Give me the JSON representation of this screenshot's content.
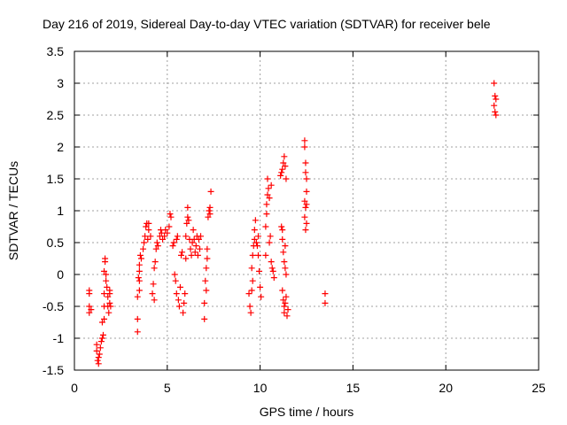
{
  "chart_data": {
    "type": "scatter",
    "title": "Day 216 of 2019, Sidereal Day-to-day VTEC variation (SDTVAR) for receiver bele",
    "xlabel": "GPS time / hours",
    "ylabel": "SDTVAR / TECUs",
    "xlim": [
      0,
      25
    ],
    "ylim": [
      -1.5,
      3.5
    ],
    "xticks": [
      0,
      5,
      10,
      15,
      20,
      25
    ],
    "xtick_labels": [
      "0",
      "5",
      "10",
      "15",
      "20",
      "25"
    ],
    "yticks": [
      -1.5,
      -1,
      -0.5,
      0,
      0.5,
      1,
      1.5,
      2,
      2.5,
      3,
      3.5
    ],
    "ytick_labels": [
      "-1.5",
      "-1",
      "-0.5",
      "0",
      "0.5",
      "1",
      "1.5",
      "2",
      "2.5",
      "3",
      "3.5"
    ],
    "grid": true,
    "marker": "plus",
    "color": "#ff0000",
    "series": [
      {
        "name": "SDTVAR",
        "points": [
          [
            0.8,
            -0.25
          ],
          [
            0.8,
            -0.3
          ],
          [
            0.8,
            -0.5
          ],
          [
            0.8,
            -0.6
          ],
          [
            0.9,
            -0.55
          ],
          [
            1.2,
            -1.1
          ],
          [
            1.2,
            -1.2
          ],
          [
            1.25,
            -1.35
          ],
          [
            1.3,
            -1.4
          ],
          [
            1.3,
            -1.3
          ],
          [
            1.35,
            -1.25
          ],
          [
            1.4,
            -1.15
          ],
          [
            1.45,
            -1.05
          ],
          [
            1.5,
            -1.0
          ],
          [
            1.5,
            -0.75
          ],
          [
            1.55,
            -0.95
          ],
          [
            1.6,
            -0.7
          ],
          [
            1.6,
            -0.5
          ],
          [
            1.6,
            -0.3
          ],
          [
            1.6,
            0.05
          ],
          [
            1.65,
            0.25
          ],
          [
            1.65,
            0.2
          ],
          [
            1.7,
            0.0
          ],
          [
            1.7,
            -0.1
          ],
          [
            1.75,
            -0.2
          ],
          [
            1.8,
            -0.35
          ],
          [
            1.8,
            -0.5
          ],
          [
            1.85,
            -0.6
          ],
          [
            1.9,
            -0.45
          ],
          [
            1.9,
            -0.3
          ],
          [
            1.9,
            -0.25
          ],
          [
            1.95,
            -0.5
          ],
          [
            3.4,
            -0.7
          ],
          [
            3.4,
            -0.9
          ],
          [
            3.4,
            -0.35
          ],
          [
            3.5,
            -0.25
          ],
          [
            3.5,
            -0.1
          ],
          [
            3.45,
            -0.05
          ],
          [
            3.5,
            0.05
          ],
          [
            3.5,
            0.15
          ],
          [
            3.55,
            0.3
          ],
          [
            3.6,
            0.25
          ],
          [
            3.7,
            0.4
          ],
          [
            3.75,
            0.5
          ],
          [
            3.8,
            0.6
          ],
          [
            3.85,
            0.75
          ],
          [
            3.9,
            0.8
          ],
          [
            3.95,
            0.55
          ],
          [
            4.0,
            0.7
          ],
          [
            4.0,
            0.8
          ],
          [
            4.1,
            0.6
          ],
          [
            4.2,
            -0.3
          ],
          [
            4.25,
            -0.15
          ],
          [
            4.3,
            -0.4
          ],
          [
            4.3,
            0.1
          ],
          [
            4.35,
            0.2
          ],
          [
            4.4,
            0.4
          ],
          [
            4.45,
            0.5
          ],
          [
            4.5,
            0.45
          ],
          [
            4.6,
            0.6
          ],
          [
            4.65,
            0.7
          ],
          [
            4.7,
            0.65
          ],
          [
            4.75,
            0.55
          ],
          [
            4.85,
            0.6
          ],
          [
            4.9,
            0.7
          ],
          [
            5.0,
            0.65
          ],
          [
            5.1,
            0.75
          ],
          [
            5.15,
            0.95
          ],
          [
            5.2,
            0.9
          ],
          [
            5.3,
            0.45
          ],
          [
            5.35,
            0.5
          ],
          [
            5.4,
            0.0
          ],
          [
            5.45,
            -0.1
          ],
          [
            5.5,
            -0.3
          ],
          [
            5.5,
            0.55
          ],
          [
            5.55,
            0.6
          ],
          [
            5.6,
            -0.4
          ],
          [
            5.65,
            -0.5
          ],
          [
            5.7,
            -0.2
          ],
          [
            5.75,
            0.3
          ],
          [
            5.8,
            0.35
          ],
          [
            5.85,
            -0.6
          ],
          [
            5.9,
            -0.45
          ],
          [
            5.95,
            -0.3
          ],
          [
            6.0,
            0.25
          ],
          [
            6.0,
            0.6
          ],
          [
            6.05,
            0.8
          ],
          [
            6.1,
            0.9
          ],
          [
            6.1,
            1.05
          ],
          [
            6.15,
            0.85
          ],
          [
            6.2,
            0.55
          ],
          [
            6.25,
            0.4
          ],
          [
            6.3,
            0.3
          ],
          [
            6.35,
            0.5
          ],
          [
            6.4,
            0.7
          ],
          [
            6.45,
            0.55
          ],
          [
            6.5,
            0.35
          ],
          [
            6.55,
            0.45
          ],
          [
            6.6,
            0.6
          ],
          [
            6.65,
            0.3
          ],
          [
            6.7,
            0.55
          ],
          [
            6.75,
            0.4
          ],
          [
            6.8,
            0.6
          ],
          [
            7.0,
            -0.45
          ],
          [
            7.0,
            -0.7
          ],
          [
            7.05,
            -0.1
          ],
          [
            7.1,
            -0.25
          ],
          [
            7.1,
            0.1
          ],
          [
            7.15,
            0.25
          ],
          [
            7.15,
            0.4
          ],
          [
            7.2,
            0.9
          ],
          [
            7.25,
            1.0
          ],
          [
            7.3,
            1.05
          ],
          [
            7.35,
            1.3
          ],
          [
            7.3,
            0.95
          ],
          [
            9.4,
            -0.3
          ],
          [
            9.45,
            -0.5
          ],
          [
            9.5,
            -0.6
          ],
          [
            9.55,
            -0.25
          ],
          [
            9.6,
            -0.1
          ],
          [
            9.55,
            0.1
          ],
          [
            9.6,
            0.3
          ],
          [
            9.65,
            0.45
          ],
          [
            9.7,
            0.55
          ],
          [
            9.7,
            0.7
          ],
          [
            9.75,
            0.85
          ],
          [
            9.8,
            0.5
          ],
          [
            9.85,
            0.45
          ],
          [
            9.9,
            0.3
          ],
          [
            9.9,
            0.6
          ],
          [
            9.95,
            0.05
          ],
          [
            10.0,
            -0.2
          ],
          [
            10.05,
            -0.35
          ],
          [
            10.3,
            0.3
          ],
          [
            10.3,
            0.75
          ],
          [
            10.35,
            0.95
          ],
          [
            10.35,
            1.1
          ],
          [
            10.4,
            1.25
          ],
          [
            10.4,
            1.5
          ],
          [
            10.45,
            1.35
          ],
          [
            10.5,
            1.2
          ],
          [
            10.5,
            0.5
          ],
          [
            10.55,
            0.6
          ],
          [
            10.6,
            1.4
          ],
          [
            10.6,
            0.2
          ],
          [
            10.65,
            0.1
          ],
          [
            10.7,
            0.05
          ],
          [
            10.75,
            -0.05
          ],
          [
            11.1,
            1.55
          ],
          [
            11.15,
            1.6
          ],
          [
            11.2,
            1.65
          ],
          [
            11.25,
            1.75
          ],
          [
            11.3,
            1.85
          ],
          [
            11.35,
            1.7
          ],
          [
            11.4,
            1.5
          ],
          [
            11.15,
            0.75
          ],
          [
            11.2,
            0.7
          ],
          [
            11.2,
            0.55
          ],
          [
            11.25,
            0.35
          ],
          [
            11.3,
            0.2
          ],
          [
            11.35,
            0.1
          ],
          [
            11.35,
            0.45
          ],
          [
            11.4,
            0.0
          ],
          [
            11.2,
            -0.25
          ],
          [
            11.25,
            -0.4
          ],
          [
            11.3,
            -0.5
          ],
          [
            11.3,
            -0.6
          ],
          [
            11.35,
            -0.45
          ],
          [
            11.4,
            -0.35
          ],
          [
            11.45,
            -0.65
          ],
          [
            11.5,
            -0.55
          ],
          [
            12.4,
            2.1
          ],
          [
            12.4,
            2.0
          ],
          [
            12.45,
            1.75
          ],
          [
            12.45,
            1.6
          ],
          [
            12.5,
            1.5
          ],
          [
            12.5,
            1.3
          ],
          [
            12.4,
            1.15
          ],
          [
            12.45,
            1.05
          ],
          [
            12.4,
            0.9
          ],
          [
            12.5,
            0.8
          ],
          [
            12.45,
            0.7
          ],
          [
            12.5,
            1.1
          ],
          [
            13.5,
            -0.3
          ],
          [
            13.5,
            -0.45
          ],
          [
            22.6,
            3.0
          ],
          [
            22.65,
            2.8
          ],
          [
            22.7,
            2.75
          ],
          [
            22.6,
            2.65
          ],
          [
            22.65,
            2.55
          ],
          [
            22.7,
            2.5
          ]
        ]
      }
    ]
  }
}
